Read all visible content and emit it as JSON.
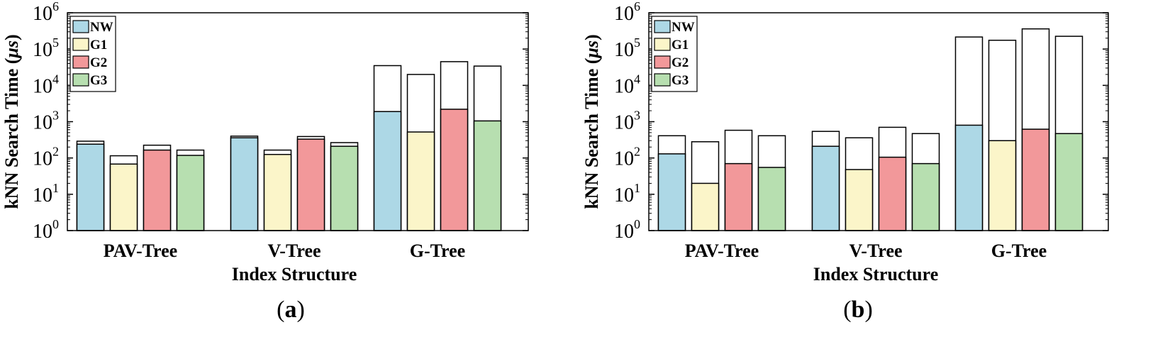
{
  "legend_colors": {
    "NW": "#add8e6",
    "G1": "#fbf5c9",
    "G2": "#f2989a",
    "G3": "#b7dfb0",
    "upper": "#ffffff"
  },
  "chart_data": [
    {
      "type": "bar",
      "panel_label": "a",
      "panel_label_left": "(",
      "panel_label_right": ")",
      "title": "",
      "scale": "log",
      "ylim_exponents": [
        0,
        6
      ],
      "ylabel_prefix": "kNN Search Time (",
      "ylabel_symbol": "μs",
      "ylabel_suffix": ")",
      "xlabel": "Index Structure",
      "legend_position": "top-left",
      "categories": [
        "PAV-Tree",
        "V-Tree",
        "G-Tree"
      ],
      "series": [
        {
          "name": "NW",
          "values": [
            240,
            360,
            1900
          ],
          "totals": [
            290,
            400,
            35000
          ]
        },
        {
          "name": "G1",
          "values": [
            68,
            125,
            520
          ],
          "totals": [
            115,
            165,
            20000
          ]
        },
        {
          "name": "G2",
          "values": [
            165,
            330,
            2200
          ],
          "totals": [
            225,
            390,
            45000
          ]
        },
        {
          "name": "G3",
          "values": [
            118,
            210,
            1050
          ],
          "totals": [
            165,
            265,
            34000
          ]
        }
      ],
      "note": "Colored segment = lower value, white stacked outline extends to total value"
    },
    {
      "type": "bar",
      "panel_label": "b",
      "panel_label_left": "(",
      "panel_label_right": ")",
      "title": "",
      "scale": "log",
      "ylim_exponents": [
        0,
        6
      ],
      "ylabel_prefix": "kNN Search Time (",
      "ylabel_symbol": "μs",
      "ylabel_suffix": ")",
      "xlabel": "Index Structure",
      "legend_position": "top-left",
      "categories": [
        "PAV-Tree",
        "V-Tree",
        "G-Tree"
      ],
      "series": [
        {
          "name": "NW",
          "values": [
            130,
            210,
            800
          ],
          "totals": [
            410,
            540,
            215000
          ]
        },
        {
          "name": "G1",
          "values": [
            20,
            48,
            300
          ],
          "totals": [
            280,
            360,
            175000
          ]
        },
        {
          "name": "G2",
          "values": [
            70,
            105,
            620
          ],
          "totals": [
            580,
            700,
            360000
          ]
        },
        {
          "name": "G3",
          "values": [
            55,
            70,
            470
          ],
          "totals": [
            410,
            470,
            225000
          ]
        }
      ],
      "note": "Colored segment = lower value, white stacked outline extends to total value"
    }
  ]
}
